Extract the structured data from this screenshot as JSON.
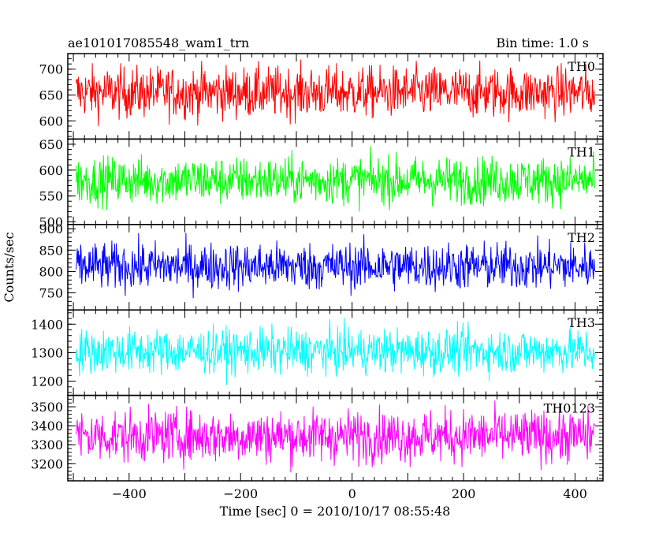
{
  "header": {
    "title": "ae101017085548_wam1_trn",
    "bin_time": "Bin time: 1.0 s"
  },
  "chart_data": {
    "type": "line",
    "xlabel": "Time [sec] 0 = 2010/10/17 08:55:48",
    "ylabel": "Counts/sec",
    "xlim": [
      -510,
      450
    ],
    "x_data_range": [
      -495,
      435
    ],
    "bin_time_s": 1.0,
    "x_ticks": [
      -400,
      -200,
      0,
      200,
      400
    ],
    "panels": [
      {
        "name": "TH0",
        "color": "#ff0000",
        "ylim": [
          565,
          730
        ],
        "yticks": [
          600,
          650,
          700
        ],
        "mean": 655,
        "noise": 25,
        "start_x": -495,
        "end_x": 435
      },
      {
        "name": "TH1",
        "color": "#00ff00",
        "ylim": [
          495,
          660
        ],
        "yticks": [
          500,
          550,
          600,
          650
        ],
        "mean": 580,
        "noise": 23,
        "start_x": -495,
        "end_x": 435
      },
      {
        "name": "TH2",
        "color": "#0000ff",
        "ylim": [
          710,
          910
        ],
        "yticks": [
          750,
          800,
          850,
          900
        ],
        "mean": 812,
        "noise": 28,
        "start_x": -495,
        "end_x": 435
      },
      {
        "name": "TH3",
        "color": "#00ffff",
        "ylim": [
          1150,
          1450
        ],
        "yticks": [
          1200,
          1300,
          1400
        ],
        "mean": 1305,
        "noise": 40,
        "start_x": -495,
        "end_x": 435
      },
      {
        "name": "TH0123",
        "color": "#ff00ff",
        "ylim": [
          3110,
          3560
        ],
        "yticks": [
          3200,
          3300,
          3400,
          3500
        ],
        "mean": 3345,
        "noise": 70,
        "start_x": -495,
        "end_x": 435
      }
    ]
  }
}
